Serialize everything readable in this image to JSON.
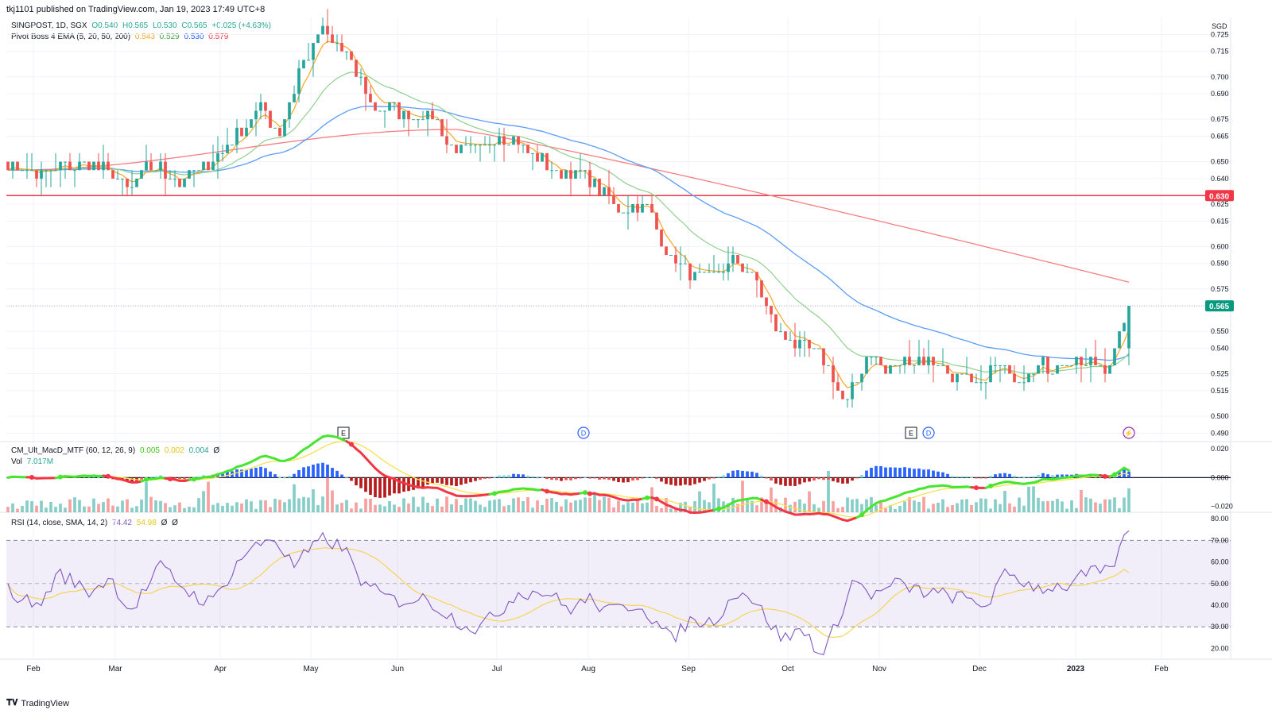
{
  "header": {
    "publisher": "tkj1101 published on TradingView.com, Jan 19, 2023 17:49 UTC+8"
  },
  "symbol_legend": {
    "symbol": "SINGPOST, 1D, SGX",
    "open": "O0.540",
    "high": "H0.565",
    "low": "L0.530",
    "close": "C0.565",
    "change": "+0.025 (+4.63%)"
  },
  "ema_legend": {
    "label": "Pivot Boss 4 EMA (5, 20, 50, 200)",
    "v1": "0.543",
    "v2": "0.529",
    "v3": "0.530",
    "v4": "0.579"
  },
  "macd_legend": {
    "label": "CM_Ult_MacD_MTF (60, 12, 26, 9)",
    "v1": "0.005",
    "v2": "0.002",
    "v3": "0.004",
    "v4": "Ø"
  },
  "vol_legend": {
    "label": "Vol",
    "value": "7.017M"
  },
  "rsi_legend": {
    "label": "RSI (14, close, SMA, 14, 2)",
    "v1": "74.42",
    "v2": "54.98",
    "v3": "Ø",
    "v4": "Ø"
  },
  "footer": {
    "brand": "TradingView"
  },
  "colors": {
    "up": "#26a69a",
    "down": "#ef5350",
    "ema5": "#f5a623",
    "ema20": "#8fd18f",
    "ema50": "#5b9cf6",
    "ema200": "#f77c80",
    "hline": "#f23645",
    "rsi": "#7e57c2",
    "rsi_ma": "#f5d24a",
    "macd_up": "#48e530",
    "macd_down": "#f23645",
    "macd_signal": "#f7e24a"
  },
  "chart_data": [
    {
      "type": "candlestick",
      "currency": "SGD",
      "price_axis_ticks": [
        0.725,
        0.715,
        0.7,
        0.69,
        0.675,
        0.665,
        0.65,
        0.64,
        0.625,
        0.615,
        0.6,
        0.59,
        0.575,
        0.565,
        0.55,
        0.54,
        0.525,
        0.515,
        0.5,
        0.49
      ],
      "price_axis_labels": [
        "0.725",
        "0.715",
        "0.700",
        "0.690",
        "0.675",
        "0.665",
        "0.650",
        "0.640",
        "0.625",
        "0.615",
        "0.600",
        "0.590",
        "0.575",
        "0.565",
        "0.550",
        "0.540",
        "0.525",
        "0.515",
        "0.500",
        "0.490"
      ],
      "ylim": [
        0.485,
        0.735
      ],
      "x_labels": [
        "Feb",
        "Mar",
        "Apr",
        "May",
        "Jun",
        "Jul",
        "Aug",
        "Sep",
        "Oct",
        "Nov",
        "Dec",
        "2023",
        "Feb"
      ],
      "horizontal_line": {
        "value": 0.63,
        "label": "0.630"
      },
      "last_price": {
        "value": 0.565,
        "label": "0.565"
      },
      "last_candle": {
        "open": 0.54,
        "high": 0.565,
        "low": 0.53,
        "close": 0.565
      },
      "close_path_anchors": [
        [
          0,
          0.65
        ],
        [
          0.03,
          0.643
        ],
        [
          0.06,
          0.648
        ],
        [
          0.09,
          0.647
        ],
        [
          0.12,
          0.634
        ],
        [
          0.14,
          0.649
        ],
        [
          0.17,
          0.638
        ],
        [
          0.19,
          0.646
        ],
        [
          0.22,
          0.661
        ],
        [
          0.25,
          0.683
        ],
        [
          0.27,
          0.667
        ],
        [
          0.29,
          0.707
        ],
        [
          0.31,
          0.726
        ],
        [
          0.33,
          0.717
        ],
        [
          0.35,
          0.697
        ],
        [
          0.36,
          0.684
        ],
        [
          0.39,
          0.678
        ],
        [
          0.42,
          0.677
        ],
        [
          0.44,
          0.657
        ],
        [
          0.46,
          0.656
        ],
        [
          0.49,
          0.666
        ],
        [
          0.52,
          0.654
        ],
        [
          0.545,
          0.642
        ],
        [
          0.57,
          0.645
        ],
        [
          0.6,
          0.624
        ],
        [
          0.63,
          0.625
        ],
        [
          0.655,
          0.595
        ],
        [
          0.68,
          0.58
        ],
        [
          0.7,
          0.585
        ],
        [
          0.72,
          0.59
        ],
        [
          0.74,
          0.582
        ],
        [
          0.76,
          0.55
        ],
        [
          0.79,
          0.54
        ],
        [
          0.81,
          0.531
        ],
        [
          0.83,
          0.508
        ],
        [
          0.855,
          0.539
        ],
        [
          0.87,
          0.526
        ],
        [
          0.89,
          0.534
        ],
        [
          0.915,
          0.532
        ],
        [
          0.94,
          0.524
        ],
        [
          0.96,
          0.516
        ],
        [
          0.98,
          0.531
        ],
        [
          1.0,
          0.524
        ],
        [
          1.03,
          0.53
        ],
        [
          1.06,
          0.531
        ],
        [
          1.09,
          0.531
        ],
        [
          1.1,
          0.545
        ],
        [
          1.11,
          0.565
        ]
      ],
      "ema_series": [
        {
          "name": "EMA 5",
          "last": 0.543
        },
        {
          "name": "EMA 20",
          "last": 0.529
        },
        {
          "name": "EMA 50",
          "last": 0.53
        },
        {
          "name": "EMA 200",
          "last": 0.579
        }
      ]
    },
    {
      "type": "macd_volume",
      "axis_labels": [
        "0.020",
        "0.000",
        "−0.020"
      ],
      "axis_ticks": [
        0.02,
        0.0,
        -0.02
      ],
      "ylim": [
        -0.024,
        0.025
      ],
      "last_macd": 0.005,
      "last_signal": 0.002,
      "last_histogram": 0.004,
      "volume_last": "7.017M"
    },
    {
      "type": "rsi",
      "axis_labels": [
        "80.00",
        "70.00",
        "60.00",
        "50.00",
        "40.00",
        "30.00",
        "20.00"
      ],
      "axis_ticks": [
        80,
        70,
        60,
        50,
        40,
        30,
        20
      ],
      "ylim": [
        15,
        83
      ],
      "band": [
        30,
        70
      ],
      "midline": 50,
      "rsi_anchors": [
        [
          0,
          47
        ],
        [
          0.03,
          39
        ],
        [
          0.05,
          55
        ],
        [
          0.08,
          46
        ],
        [
          0.1,
          53
        ],
        [
          0.12,
          37
        ],
        [
          0.15,
          58
        ],
        [
          0.18,
          45
        ],
        [
          0.2,
          41
        ],
        [
          0.23,
          63
        ],
        [
          0.26,
          72
        ],
        [
          0.28,
          58
        ],
        [
          0.31,
          71
        ],
        [
          0.33,
          66
        ],
        [
          0.35,
          49
        ],
        [
          0.38,
          42
        ],
        [
          0.41,
          43
        ],
        [
          0.44,
          33
        ],
        [
          0.46,
          29
        ],
        [
          0.48,
          36
        ],
        [
          0.5,
          46
        ],
        [
          0.53,
          46
        ],
        [
          0.55,
          38
        ],
        [
          0.57,
          43
        ],
        [
          0.59,
          37
        ],
        [
          0.62,
          41
        ],
        [
          0.65,
          24
        ],
        [
          0.67,
          33
        ],
        [
          0.69,
          32
        ],
        [
          0.72,
          48
        ],
        [
          0.74,
          37
        ],
        [
          0.76,
          24
        ],
        [
          0.78,
          29
        ],
        [
          0.8,
          16
        ],
        [
          0.83,
          52
        ],
        [
          0.85,
          44
        ],
        [
          0.87,
          50
        ],
        [
          0.9,
          46
        ],
        [
          0.93,
          44
        ],
        [
          0.96,
          40
        ],
        [
          0.98,
          55
        ],
        [
          1.01,
          48
        ],
        [
          1.04,
          49
        ],
        [
          1.06,
          55
        ],
        [
          1.08,
          55
        ],
        [
          1.09,
          64
        ],
        [
          1.1,
          74.4
        ]
      ],
      "last_rsi": 74.42,
      "last_rsi_ma": 54.98
    }
  ],
  "event_markers": [
    {
      "label": "E",
      "month": "May"
    },
    {
      "label": "D",
      "month": "Jul"
    },
    {
      "label": "E",
      "month": "Nov"
    },
    {
      "label": "D",
      "month": "Nov"
    },
    {
      "label": "⚡",
      "month": "Jan"
    }
  ]
}
